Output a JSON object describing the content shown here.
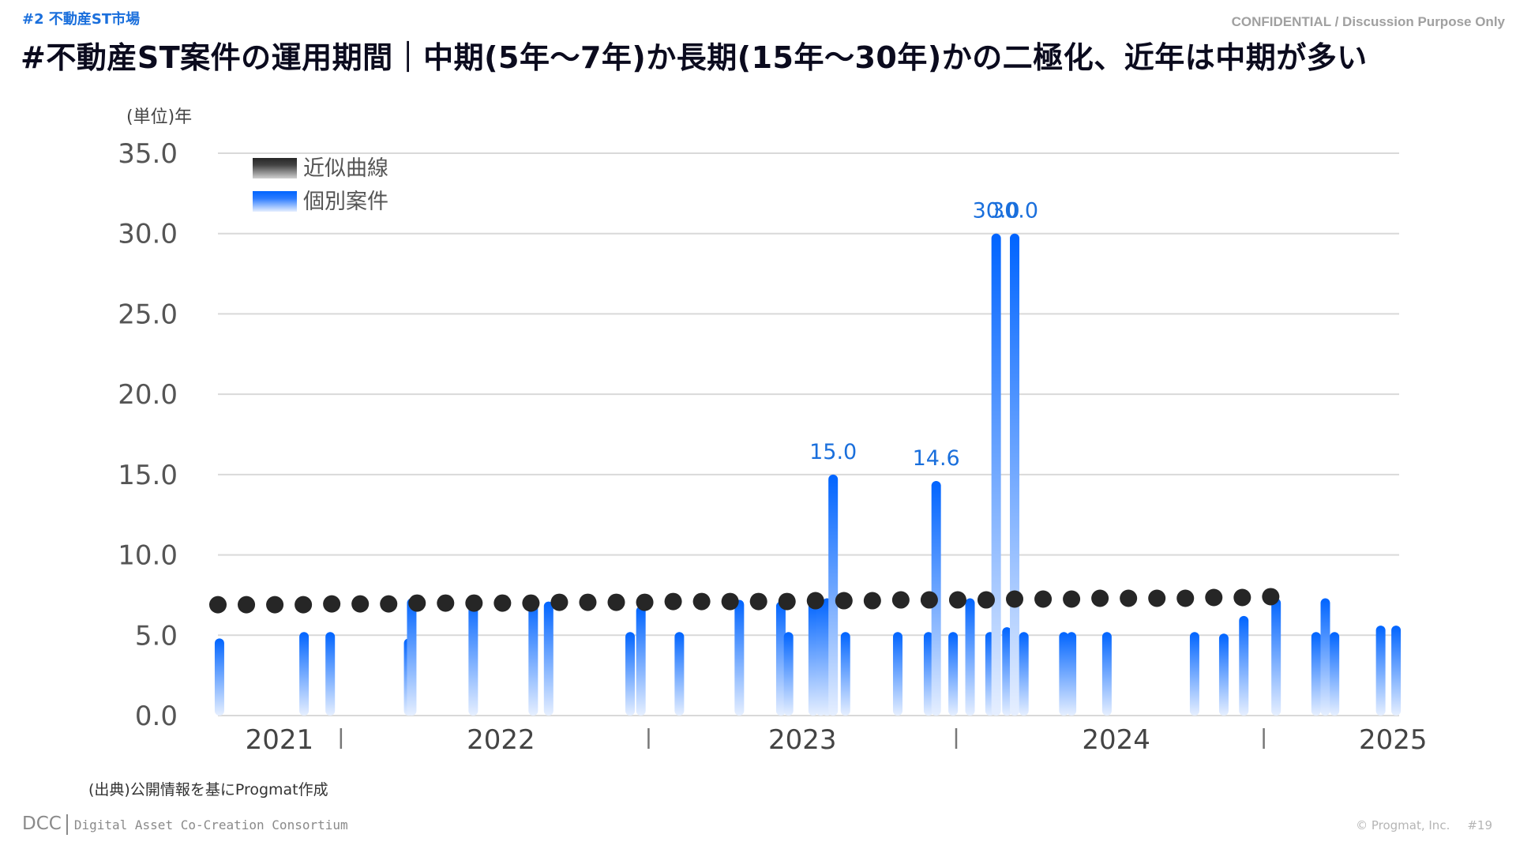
{
  "header": {
    "section": "#2  不動産ST市場",
    "confidential": "CONFIDENTIAL / Discussion Purpose Only",
    "title": "#不動産ST案件の運用期間｜中期(5年～7年)か長期(15年～30年)かの二極化、近年は中期が多い"
  },
  "unit_label": "(単位)年",
  "source": "(出典)公開情報を基にProgmat作成",
  "footer": {
    "logo": "DCC",
    "org_name": "Digital Asset Co-Creation Consortium",
    "copyright": "© Progmat, Inc.",
    "page": "#19"
  },
  "colors": {
    "bar_top": "#0064ff",
    "bar_bottom": "#e6efff",
    "trend": "#262626",
    "label": "#1a6fdc",
    "grid": "#d9d9d9"
  },
  "chart_data": {
    "type": "bar",
    "title": "",
    "xlabel": "",
    "ylabel": "(単位)年",
    "ylim": [
      0,
      35
    ],
    "yticks": [
      "0.0",
      "5.0",
      "10.0",
      "15.0",
      "20.0",
      "25.0",
      "30.0",
      "35.0"
    ],
    "xlim": [
      2021.6,
      2025.44
    ],
    "year_labels": [
      "2021",
      "2022",
      "2023",
      "2024",
      "2025"
    ],
    "year_label_positions": [
      2021.8,
      2022.52,
      2023.5,
      2024.52,
      2025.42
    ],
    "year_dividers": [
      2022.0,
      2023.0,
      2024.0,
      2025.0
    ],
    "divider_glyph": "|",
    "grid": true,
    "legend": {
      "placement": "top-left",
      "entries": [
        {
          "name": "近似曲線",
          "style": "trend"
        },
        {
          "name": "個別案件",
          "style": "bar"
        }
      ]
    },
    "series": [
      {
        "name": "個別案件",
        "type": "bar",
        "x": [
          2021.605,
          2021.88,
          2021.965,
          2022.22,
          2022.23,
          2022.43,
          2022.625,
          2022.675,
          2022.94,
          2022.975,
          2023.1,
          2023.295,
          2023.43,
          2023.455,
          2023.535,
          2023.56,
          2023.58,
          2023.6,
          2023.64,
          2023.81,
          2023.91,
          2023.935,
          2023.99,
          2024.045,
          2024.11,
          2024.13,
          2024.165,
          2024.19,
          2024.22,
          2024.35,
          2024.375,
          2024.49,
          2024.775,
          2024.87,
          2024.935,
          2025.04,
          2025.17,
          2025.2,
          2025.23,
          2025.38,
          2025.43
        ],
        "values": [
          4.8,
          5.2,
          5.2,
          4.8,
          7.3,
          7.3,
          7.2,
          7.1,
          5.2,
          6.8,
          5.2,
          7.2,
          7.1,
          5.2,
          7.2,
          7.3,
          7.3,
          15.0,
          5.2,
          5.2,
          5.2,
          14.6,
          5.2,
          7.3,
          5.2,
          30.0,
          5.5,
          30.0,
          5.2,
          5.2,
          5.2,
          5.2,
          5.2,
          5.1,
          6.2,
          7.3,
          5.2,
          7.3,
          5.2,
          5.6,
          5.6
        ],
        "data_labels": [
          {
            "index": 17,
            "text": "15.0"
          },
          {
            "index": 21,
            "text": "14.6"
          },
          {
            "index": 25,
            "text": "30.0"
          },
          {
            "index": 27,
            "text": "30.0"
          }
        ]
      },
      {
        "name": "近似曲線",
        "type": "scatter",
        "x_start": 2021.6,
        "x_step": 0.0925,
        "values": [
          6.9,
          6.9,
          6.9,
          6.9,
          6.95,
          6.95,
          6.95,
          7.0,
          7.0,
          7.0,
          7.0,
          7.0,
          7.05,
          7.05,
          7.05,
          7.05,
          7.1,
          7.1,
          7.1,
          7.1,
          7.1,
          7.15,
          7.15,
          7.15,
          7.2,
          7.2,
          7.2,
          7.2,
          7.25,
          7.25,
          7.25,
          7.3,
          7.3,
          7.3,
          7.3,
          7.35,
          7.35,
          7.4
        ]
      }
    ]
  }
}
